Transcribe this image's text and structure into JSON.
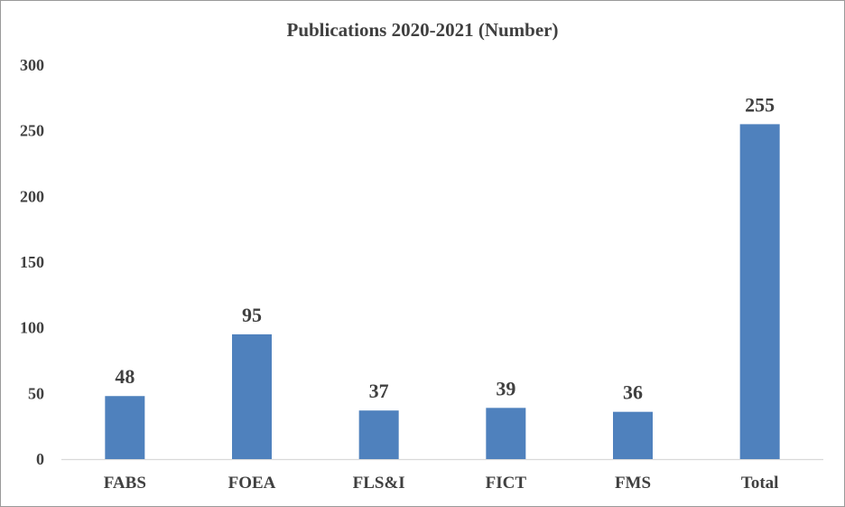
{
  "chart_data": {
    "type": "bar",
    "title": "Publications 2020-2021 (Number)",
    "xlabel": "",
    "ylabel": "",
    "categories": [
      "FABS",
      "FOEA",
      "FLS&I",
      "FICT",
      "FMS",
      "Total"
    ],
    "values": [
      48,
      95,
      37,
      39,
      36,
      255
    ],
    "data_labels": [
      "48",
      "95",
      "37",
      "39",
      "36",
      "255"
    ],
    "yticks": [
      "0",
      "50",
      "100",
      "150",
      "200",
      "250",
      "300"
    ],
    "ylim": [
      0,
      300
    ],
    "grid": false,
    "legend": "none",
    "bar_color": "#4f81bd",
    "text_color": "#404040"
  }
}
